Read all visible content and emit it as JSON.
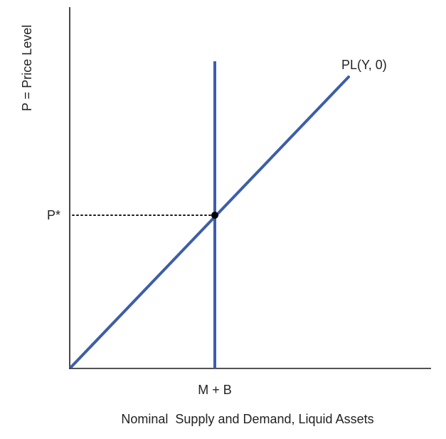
{
  "diagram": {
    "y_axis_label": "P = Price Level",
    "x_axis_label": "Nominal  Supply and Demand, Liquid Assets",
    "p_star_label": "P*",
    "supply_label": "M + B",
    "demand_label": "PL(Y, 0)"
  },
  "colors": {
    "axis": "#1a1a1a",
    "curve": "#3d5ea8",
    "point": "#000000",
    "text": "#222222"
  }
}
